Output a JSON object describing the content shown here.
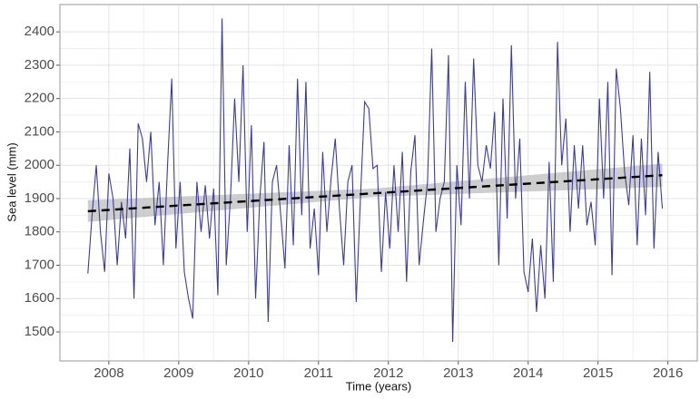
{
  "chart_data": {
    "type": "line",
    "x_label": "Time (years)",
    "y_label": "Sea level (mm)",
    "xlim": [
      2007.3,
      2016.42
    ],
    "ylim": [
      1413,
      2482
    ],
    "xticks": [
      2008,
      2009,
      2010,
      2011,
      2012,
      2013,
      2014,
      2015,
      2016
    ],
    "yticks": [
      1500,
      1600,
      1700,
      1800,
      1900,
      2000,
      2100,
      2200,
      2300,
      2400
    ],
    "grid": true,
    "color": "#3d3d99",
    "x": [
      2007.7,
      2007.76,
      2007.82,
      2007.88,
      2007.94,
      2008.0,
      2008.06,
      2008.12,
      2008.18,
      2008.24,
      2008.3,
      2008.36,
      2008.42,
      2008.48,
      2008.54,
      2008.6,
      2008.66,
      2008.72,
      2008.78,
      2008.84,
      2008.9,
      2008.96,
      2009.02,
      2009.08,
      2009.14,
      2009.2,
      2009.26,
      2009.32,
      2009.38,
      2009.44,
      2009.5,
      2009.56,
      2009.62,
      2009.68,
      2009.74,
      2009.8,
      2009.86,
      2009.92,
      2009.98,
      2010.04,
      2010.1,
      2010.16,
      2010.22,
      2010.28,
      2010.34,
      2010.4,
      2010.46,
      2010.52,
      2010.58,
      2010.64,
      2010.7,
      2010.76,
      2010.82,
      2010.88,
      2010.94,
      2011.0,
      2011.06,
      2011.12,
      2011.18,
      2011.24,
      2011.3,
      2011.36,
      2011.42,
      2011.48,
      2011.54,
      2011.6,
      2011.66,
      2011.72,
      2011.78,
      2011.84,
      2011.9,
      2011.96,
      2012.02,
      2012.08,
      2012.14,
      2012.2,
      2012.26,
      2012.32,
      2012.38,
      2012.44,
      2012.5,
      2012.56,
      2012.62,
      2012.68,
      2012.74,
      2012.8,
      2012.86,
      2012.92,
      2012.98,
      2013.04,
      2013.1,
      2013.16,
      2013.22,
      2013.28,
      2013.34,
      2013.4,
      2013.46,
      2013.52,
      2013.58,
      2013.64,
      2013.7,
      2013.76,
      2013.82,
      2013.88,
      2013.94,
      2014.0,
      2014.06,
      2014.12,
      2014.18,
      2014.24,
      2014.3,
      2014.36,
      2014.42,
      2014.48,
      2014.54,
      2014.6,
      2014.66,
      2014.72,
      2014.78,
      2014.84,
      2014.9,
      2014.96,
      2015.02,
      2015.08,
      2015.14,
      2015.2,
      2015.26,
      2015.32,
      2015.38,
      2015.44,
      2015.5,
      2015.56,
      2015.62,
      2015.68,
      2015.74,
      2015.8,
      2015.86,
      2015.92
    ],
    "values": [
      1675,
      1850,
      2000,
      1800,
      1680,
      1975,
      1900,
      1700,
      1890,
      1780,
      2050,
      1600,
      2125,
      2080,
      1950,
      2100,
      1820,
      1950,
      1700,
      2000,
      2260,
      1750,
      1950,
      1680,
      1600,
      1540,
      1950,
      1800,
      1940,
      1780,
      1930,
      1610,
      2440,
      1700,
      1900,
      2200,
      1950,
      2300,
      1800,
      2120,
      1600,
      1900,
      2070,
      1530,
      1950,
      2000,
      1850,
      1690,
      2060,
      1760,
      2260,
      1850,
      2250,
      1750,
      1870,
      1670,
      2040,
      1800,
      1960,
      2080,
      1870,
      1700,
      1950,
      2000,
      1590,
      1900,
      2190,
      2170,
      1990,
      2000,
      1680,
      1920,
      1750,
      2000,
      1800,
      2040,
      1650,
      1980,
      2090,
      1700,
      1830,
      1950,
      2350,
      1800,
      1900,
      1950,
      2330,
      1470,
      2000,
      1820,
      2250,
      1900,
      2320,
      2000,
      1950,
      2060,
      1990,
      2160,
      1700,
      2200,
      1840,
      2360,
      1900,
      2080,
      1680,
      1620,
      1780,
      1560,
      1760,
      1600,
      2010,
      1650,
      2370,
      2000,
      2140,
      1800,
      2060,
      1870,
      2060,
      1820,
      1890,
      1760,
      2200,
      1900,
      2250,
      1670,
      2290,
      2170,
      1980,
      1880,
      2090,
      1760,
      2080,
      1850,
      2280,
      1750,
      2040,
      1870
    ],
    "trend_line": {
      "x": [
        2007.7,
        2015.92
      ],
      "values": [
        1862,
        1970
      ],
      "color": "#000000",
      "dashed": true
    },
    "confidence_band": {
      "x": [
        2007.7,
        2011.8,
        2015.92
      ],
      "lower": [
        1830,
        1905,
        1935
      ],
      "upper": [
        1895,
        1930,
        2005
      ],
      "color": "#bdbdbd"
    }
  }
}
